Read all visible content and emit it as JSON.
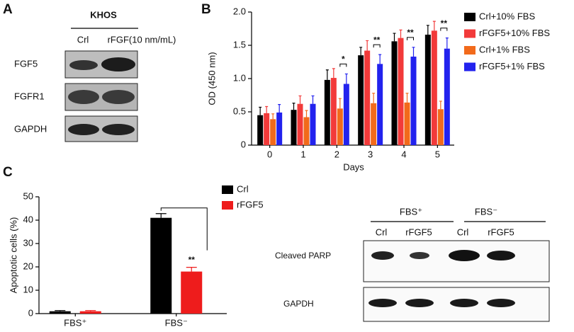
{
  "panel_labels": [
    "A",
    "B",
    "C"
  ],
  "blot_a": {
    "header": "KHOS",
    "columns": [
      "Crl",
      "rFGF(10 nm/mL)"
    ],
    "rows": [
      "FGF5",
      "FGFR1",
      "GAPDH"
    ]
  },
  "blot_c": {
    "groups": [
      "FBS⁺",
      "FBS⁻"
    ],
    "columns": [
      "Crl",
      "rFGF5",
      "Crl",
      "rFGF5"
    ],
    "rows": [
      "Cleaved PARP",
      "GAPDH"
    ]
  },
  "chart_data": [
    {
      "type": "bar",
      "ylabel": "OD (450 nm)",
      "xlabel": "Days",
      "categories": [
        "0",
        "1",
        "2",
        "3",
        "4",
        "5"
      ],
      "series": [
        {
          "name": "Crl+10% FBS",
          "color": "#000000",
          "values": [
            0.45,
            0.53,
            0.98,
            1.35,
            1.56,
            1.66
          ],
          "errors": [
            0.12,
            0.1,
            0.15,
            0.12,
            0.12,
            0.14
          ]
        },
        {
          "name": "rFGF5+10% FBS",
          "color": "#f23a3a",
          "values": [
            0.48,
            0.62,
            1.01,
            1.42,
            1.61,
            1.72
          ],
          "errors": [
            0.1,
            0.12,
            0.14,
            0.15,
            0.12,
            0.14
          ]
        },
        {
          "name": "Crl+1% FBS",
          "color": "#f26a1b",
          "values": [
            0.39,
            0.42,
            0.55,
            0.63,
            0.64,
            0.54
          ],
          "errors": [
            0.08,
            0.1,
            0.15,
            0.15,
            0.14,
            0.12
          ]
        },
        {
          "name": "rFGF5+1% FBS",
          "color": "#2222ee",
          "values": [
            0.49,
            0.62,
            0.92,
            1.22,
            1.33,
            1.45
          ],
          "errors": [
            0.12,
            0.12,
            0.15,
            0.14,
            0.14,
            0.16
          ]
        }
      ],
      "significance": [
        null,
        null,
        "*",
        "**",
        "**",
        "**"
      ],
      "ylim": [
        0,
        2
      ],
      "yticks": [
        0,
        0.5,
        {
          "value": 1,
          "label": "1.0"
        },
        1.5,
        {
          "value": 2,
          "label": "2.0"
        }
      ],
      "legend": "right"
    },
    {
      "type": "bar",
      "ylabel": "Apoptotic cells (%)",
      "categories": [
        "FBS⁺",
        "FBS⁻"
      ],
      "series": [
        {
          "name": "Crl",
          "color": "#000000",
          "values": [
            1.0,
            41
          ],
          "errors": [
            0.3,
            1.8
          ]
        },
        {
          "name": "rFGF5",
          "color": "#ee1c1c",
          "values": [
            1.0,
            18
          ],
          "errors": [
            0.3,
            1.8
          ]
        }
      ],
      "significance": [
        null,
        "**"
      ],
      "ylim": [
        0,
        50
      ],
      "yticks": [
        0,
        10,
        20,
        30,
        40,
        50
      ],
      "legend": "right"
    }
  ]
}
